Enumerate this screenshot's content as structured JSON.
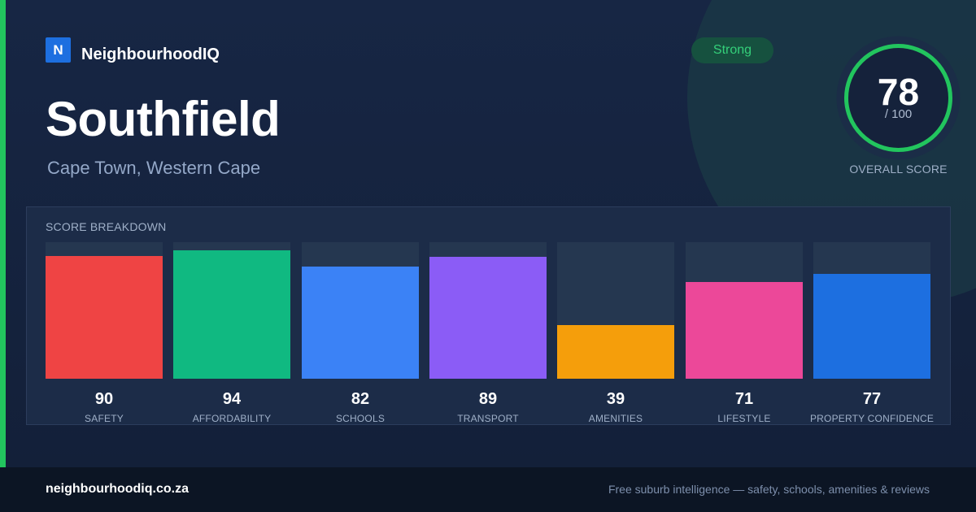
{
  "brand": {
    "logo_letter": "N",
    "name": "NeighbourhoodIQ"
  },
  "suburb": {
    "name": "Southfield",
    "location": "Cape Town, Western Cape"
  },
  "badge": {
    "label": "Strong",
    "color": "#34d07a"
  },
  "overall": {
    "score": "78",
    "out_of": "/ 100",
    "label": "OVERALL SCORE",
    "fraction": 0.78,
    "ring_color": "#22c55e"
  },
  "breakdown": {
    "title": "SCORE BREAKDOWN",
    "max": 100,
    "items": [
      {
        "label": "SAFETY",
        "value": 90,
        "color": "#ef4444"
      },
      {
        "label": "AFFORDABILITY",
        "value": 94,
        "color": "#10b981"
      },
      {
        "label": "SCHOOLS",
        "value": 82,
        "color": "#3b82f6"
      },
      {
        "label": "TRANSPORT",
        "value": 89,
        "color": "#8b5cf6"
      },
      {
        "label": "AMENITIES",
        "value": 39,
        "color": "#f59e0b"
      },
      {
        "label": "LIFESTYLE",
        "value": 71,
        "color": "#ec4899"
      },
      {
        "label": "PROPERTY CONFIDENCE",
        "value": 77,
        "color": "#1d6fe0"
      }
    ]
  },
  "footer": {
    "url": "neighbourhoodiq.co.za",
    "tagline": "Free suburb intelligence — safety, schools, amenities & reviews"
  }
}
